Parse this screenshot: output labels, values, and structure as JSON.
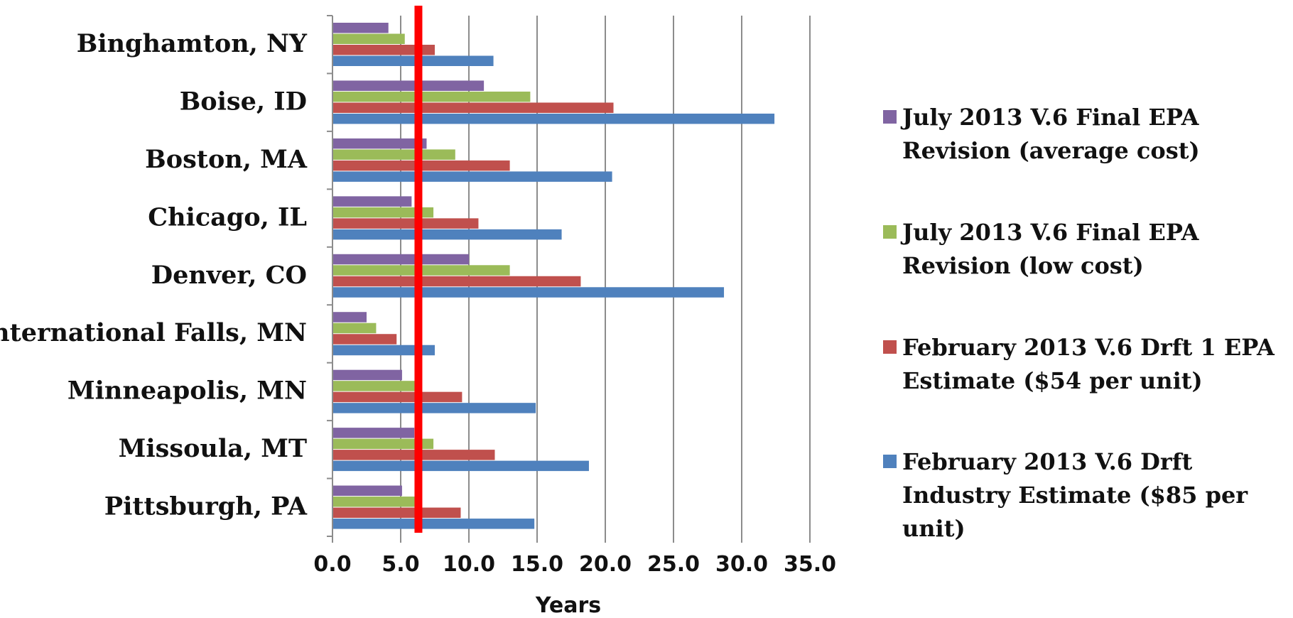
{
  "chart_data": {
    "type": "bar",
    "orientation": "horizontal",
    "categories": [
      "Binghamton, NY",
      "Boise, ID",
      "Boston, MA",
      "Chicago, IL",
      "Denver, CO",
      "International Falls, MN",
      "Minneapolis, MN",
      "Missoula, MT",
      "Pittsburgh, PA"
    ],
    "series": [
      {
        "name": "July 2013 V.6 Final EPA Revision (average cost)",
        "color": "#8064A2",
        "values": [
          4.1,
          11.1,
          6.9,
          5.8,
          10.0,
          2.5,
          5.1,
          6.0,
          5.1
        ]
      },
      {
        "name": "July 2013 V.6 Final EPA Revision (low cost)",
        "color": "#9BBB59",
        "values": [
          5.3,
          14.5,
          9.0,
          7.4,
          13.0,
          3.2,
          6.2,
          7.4,
          6.2
        ]
      },
      {
        "name": "February 2013 V.6 Drft 1 EPA Estimate ($54 per unit)",
        "color": "#C0504D",
        "values": [
          7.5,
          20.6,
          13.0,
          10.7,
          18.2,
          4.7,
          9.5,
          11.9,
          9.4
        ]
      },
      {
        "name": "February 2013 V.6 Drft Industry Estimate ($85 per unit)",
        "color": "#4F81BD",
        "values": [
          11.8,
          32.4,
          20.5,
          16.8,
          28.7,
          7.5,
          14.9,
          18.8,
          14.8
        ]
      }
    ],
    "xlabel": "Years",
    "xlim": [
      0,
      35
    ],
    "xticks": [
      "0.0",
      "5.0",
      "10.0",
      "15.0",
      "20.0",
      "25.0",
      "30.0",
      "35.0"
    ],
    "reference_line": {
      "x": 6.3,
      "color": "#FF0000"
    },
    "gridlines": "vertical",
    "legend_position": "right",
    "legend_lines": [
      [
        "July 2013 V.6 Final EPA",
        "Revision (average cost)"
      ],
      [
        "July 2013 V.6 Final EPA",
        "Revision (low cost)"
      ],
      [
        "February 2013 V.6 Drft 1 EPA",
        "Estimate ($54 per unit)"
      ],
      [
        "February 2013 V.6 Drft",
        "Industry Estimate ($85 per",
        "unit)"
      ]
    ]
  }
}
